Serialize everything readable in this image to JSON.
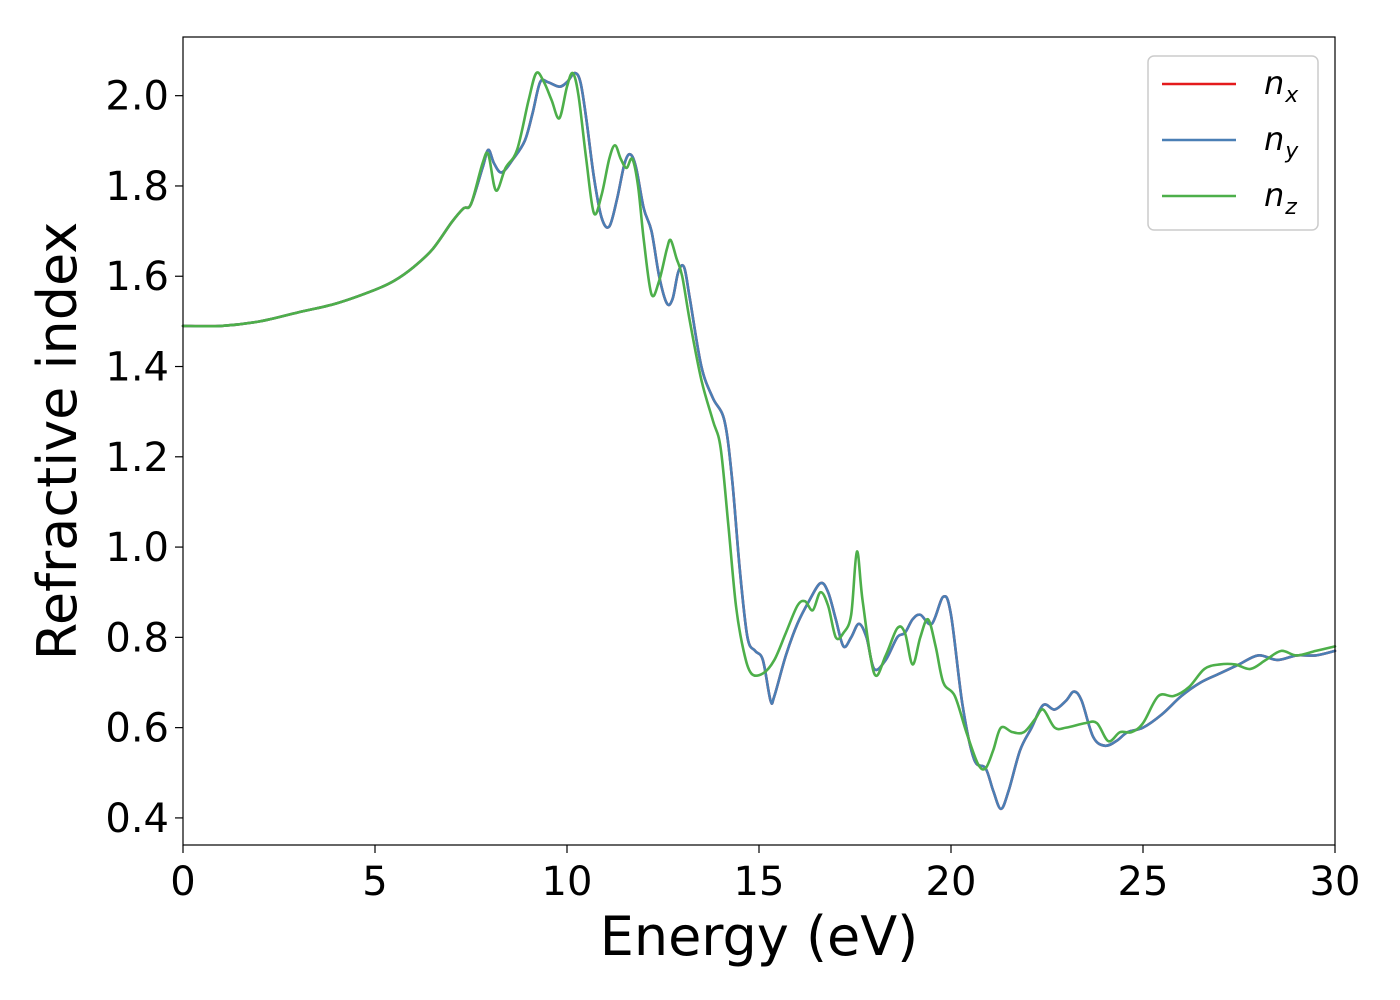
{
  "chart_data": {
    "type": "line",
    "title": "",
    "xlabel": "Energy (eV)",
    "ylabel": "Refractive index",
    "xlim": [
      0,
      30
    ],
    "ylim": [
      0.34,
      2.13
    ],
    "x_ticks": [
      0,
      5,
      10,
      15,
      20,
      25,
      30
    ],
    "y_ticks": [
      0.4,
      0.6,
      0.8,
      1.0,
      1.2,
      1.4,
      1.6,
      1.8,
      2.0
    ],
    "grid": false,
    "legend_position": "top-right",
    "series": [
      {
        "name": "n",
        "subscript": "x",
        "color": "#e41a1c",
        "points": [
          [
            0,
            1.49
          ],
          [
            1,
            1.49
          ],
          [
            2,
            1.5
          ],
          [
            3,
            1.52
          ],
          [
            4,
            1.54
          ],
          [
            5,
            1.57
          ],
          [
            5.5,
            1.59
          ],
          [
            6,
            1.62
          ],
          [
            6.5,
            1.66
          ],
          [
            7,
            1.72
          ],
          [
            7.3,
            1.75
          ],
          [
            7.5,
            1.76
          ],
          [
            7.8,
            1.84
          ],
          [
            7.95,
            1.88
          ],
          [
            8.1,
            1.85
          ],
          [
            8.3,
            1.83
          ],
          [
            8.6,
            1.86
          ],
          [
            8.9,
            1.9
          ],
          [
            9.1,
            1.96
          ],
          [
            9.3,
            2.03
          ],
          [
            9.5,
            2.03
          ],
          [
            9.8,
            2.02
          ],
          [
            10.0,
            2.03
          ],
          [
            10.2,
            2.05
          ],
          [
            10.35,
            2.03
          ],
          [
            10.5,
            1.95
          ],
          [
            10.7,
            1.82
          ],
          [
            10.9,
            1.73
          ],
          [
            11.1,
            1.71
          ],
          [
            11.3,
            1.77
          ],
          [
            11.5,
            1.85
          ],
          [
            11.65,
            1.87
          ],
          [
            11.8,
            1.84
          ],
          [
            12.0,
            1.75
          ],
          [
            12.2,
            1.7
          ],
          [
            12.4,
            1.6
          ],
          [
            12.6,
            1.54
          ],
          [
            12.75,
            1.55
          ],
          [
            12.9,
            1.61
          ],
          [
            13.05,
            1.62
          ],
          [
            13.2,
            1.55
          ],
          [
            13.5,
            1.4
          ],
          [
            13.8,
            1.33
          ],
          [
            14.1,
            1.28
          ],
          [
            14.3,
            1.15
          ],
          [
            14.5,
            0.95
          ],
          [
            14.7,
            0.8
          ],
          [
            14.9,
            0.77
          ],
          [
            15.1,
            0.75
          ],
          [
            15.3,
            0.66
          ],
          [
            15.4,
            0.67
          ],
          [
            15.7,
            0.76
          ],
          [
            16.0,
            0.83
          ],
          [
            16.3,
            0.88
          ],
          [
            16.6,
            0.92
          ],
          [
            16.8,
            0.9
          ],
          [
            17.0,
            0.84
          ],
          [
            17.2,
            0.78
          ],
          [
            17.4,
            0.8
          ],
          [
            17.6,
            0.83
          ],
          [
            17.8,
            0.8
          ],
          [
            18.0,
            0.73
          ],
          [
            18.3,
            0.75
          ],
          [
            18.6,
            0.8
          ],
          [
            18.8,
            0.81
          ],
          [
            19.0,
            0.84
          ],
          [
            19.2,
            0.85
          ],
          [
            19.5,
            0.83
          ],
          [
            19.8,
            0.89
          ],
          [
            20.0,
            0.85
          ],
          [
            20.3,
            0.65
          ],
          [
            20.6,
            0.53
          ],
          [
            20.9,
            0.51
          ],
          [
            21.1,
            0.46
          ],
          [
            21.3,
            0.42
          ],
          [
            21.5,
            0.46
          ],
          [
            21.8,
            0.55
          ],
          [
            22.1,
            0.6
          ],
          [
            22.4,
            0.65
          ],
          [
            22.7,
            0.64
          ],
          [
            23.0,
            0.66
          ],
          [
            23.2,
            0.68
          ],
          [
            23.4,
            0.66
          ],
          [
            23.7,
            0.58
          ],
          [
            24.0,
            0.56
          ],
          [
            24.3,
            0.57
          ],
          [
            24.6,
            0.59
          ],
          [
            25.0,
            0.6
          ],
          [
            25.5,
            0.63
          ],
          [
            26.0,
            0.67
          ],
          [
            26.5,
            0.7
          ],
          [
            27.0,
            0.72
          ],
          [
            27.5,
            0.74
          ],
          [
            28.0,
            0.76
          ],
          [
            28.5,
            0.75
          ],
          [
            29.0,
            0.76
          ],
          [
            29.5,
            0.76
          ],
          [
            30.0,
            0.77
          ]
        ]
      },
      {
        "name": "n",
        "subscript": "y",
        "color": "#4a7fb5",
        "points": [
          [
            0,
            1.49
          ],
          [
            1,
            1.49
          ],
          [
            2,
            1.5
          ],
          [
            3,
            1.52
          ],
          [
            4,
            1.54
          ],
          [
            5,
            1.57
          ],
          [
            5.5,
            1.59
          ],
          [
            6,
            1.62
          ],
          [
            6.5,
            1.66
          ],
          [
            7,
            1.72
          ],
          [
            7.3,
            1.75
          ],
          [
            7.5,
            1.76
          ],
          [
            7.8,
            1.84
          ],
          [
            7.95,
            1.88
          ],
          [
            8.1,
            1.85
          ],
          [
            8.3,
            1.83
          ],
          [
            8.6,
            1.86
          ],
          [
            8.9,
            1.9
          ],
          [
            9.1,
            1.96
          ],
          [
            9.3,
            2.03
          ],
          [
            9.5,
            2.03
          ],
          [
            9.8,
            2.02
          ],
          [
            10.0,
            2.03
          ],
          [
            10.2,
            2.05
          ],
          [
            10.35,
            2.03
          ],
          [
            10.5,
            1.95
          ],
          [
            10.7,
            1.82
          ],
          [
            10.9,
            1.73
          ],
          [
            11.1,
            1.71
          ],
          [
            11.3,
            1.77
          ],
          [
            11.5,
            1.85
          ],
          [
            11.65,
            1.87
          ],
          [
            11.8,
            1.84
          ],
          [
            12.0,
            1.75
          ],
          [
            12.2,
            1.7
          ],
          [
            12.4,
            1.6
          ],
          [
            12.6,
            1.54
          ],
          [
            12.75,
            1.55
          ],
          [
            12.9,
            1.61
          ],
          [
            13.05,
            1.62
          ],
          [
            13.2,
            1.55
          ],
          [
            13.5,
            1.4
          ],
          [
            13.8,
            1.33
          ],
          [
            14.1,
            1.28
          ],
          [
            14.3,
            1.15
          ],
          [
            14.5,
            0.95
          ],
          [
            14.7,
            0.8
          ],
          [
            14.9,
            0.77
          ],
          [
            15.1,
            0.75
          ],
          [
            15.3,
            0.66
          ],
          [
            15.4,
            0.67
          ],
          [
            15.7,
            0.76
          ],
          [
            16.0,
            0.83
          ],
          [
            16.3,
            0.88
          ],
          [
            16.6,
            0.92
          ],
          [
            16.8,
            0.9
          ],
          [
            17.0,
            0.84
          ],
          [
            17.2,
            0.78
          ],
          [
            17.4,
            0.8
          ],
          [
            17.6,
            0.83
          ],
          [
            17.8,
            0.8
          ],
          [
            18.0,
            0.73
          ],
          [
            18.3,
            0.75
          ],
          [
            18.6,
            0.8
          ],
          [
            18.8,
            0.81
          ],
          [
            19.0,
            0.84
          ],
          [
            19.2,
            0.85
          ],
          [
            19.5,
            0.83
          ],
          [
            19.8,
            0.89
          ],
          [
            20.0,
            0.85
          ],
          [
            20.3,
            0.65
          ],
          [
            20.6,
            0.53
          ],
          [
            20.9,
            0.51
          ],
          [
            21.1,
            0.46
          ],
          [
            21.3,
            0.42
          ],
          [
            21.5,
            0.46
          ],
          [
            21.8,
            0.55
          ],
          [
            22.1,
            0.6
          ],
          [
            22.4,
            0.65
          ],
          [
            22.7,
            0.64
          ],
          [
            23.0,
            0.66
          ],
          [
            23.2,
            0.68
          ],
          [
            23.4,
            0.66
          ],
          [
            23.7,
            0.58
          ],
          [
            24.0,
            0.56
          ],
          [
            24.3,
            0.57
          ],
          [
            24.6,
            0.59
          ],
          [
            25.0,
            0.6
          ],
          [
            25.5,
            0.63
          ],
          [
            26.0,
            0.67
          ],
          [
            26.5,
            0.7
          ],
          [
            27.0,
            0.72
          ],
          [
            27.5,
            0.74
          ],
          [
            28.0,
            0.76
          ],
          [
            28.5,
            0.75
          ],
          [
            29.0,
            0.76
          ],
          [
            29.5,
            0.76
          ],
          [
            30.0,
            0.77
          ]
        ]
      },
      {
        "name": "n",
        "subscript": "z",
        "color": "#4daf4a",
        "points": [
          [
            0,
            1.49
          ],
          [
            1,
            1.49
          ],
          [
            2,
            1.5
          ],
          [
            3,
            1.52
          ],
          [
            4,
            1.54
          ],
          [
            5,
            1.57
          ],
          [
            5.5,
            1.59
          ],
          [
            6,
            1.62
          ],
          [
            6.5,
            1.66
          ],
          [
            7,
            1.72
          ],
          [
            7.3,
            1.75
          ],
          [
            7.5,
            1.76
          ],
          [
            7.8,
            1.85
          ],
          [
            7.95,
            1.87
          ],
          [
            8.15,
            1.79
          ],
          [
            8.4,
            1.84
          ],
          [
            8.7,
            1.88
          ],
          [
            9.0,
            1.99
          ],
          [
            9.2,
            2.05
          ],
          [
            9.4,
            2.03
          ],
          [
            9.6,
            1.99
          ],
          [
            9.8,
            1.95
          ],
          [
            10.0,
            2.02
          ],
          [
            10.15,
            2.05
          ],
          [
            10.3,
            2.0
          ],
          [
            10.5,
            1.86
          ],
          [
            10.7,
            1.74
          ],
          [
            10.9,
            1.78
          ],
          [
            11.1,
            1.86
          ],
          [
            11.25,
            1.89
          ],
          [
            11.4,
            1.86
          ],
          [
            11.55,
            1.84
          ],
          [
            11.7,
            1.86
          ],
          [
            11.85,
            1.8
          ],
          [
            12.0,
            1.68
          ],
          [
            12.2,
            1.56
          ],
          [
            12.4,
            1.59
          ],
          [
            12.6,
            1.66
          ],
          [
            12.7,
            1.68
          ],
          [
            12.85,
            1.64
          ],
          [
            13.0,
            1.6
          ],
          [
            13.2,
            1.5
          ],
          [
            13.5,
            1.37
          ],
          [
            13.8,
            1.28
          ],
          [
            14.0,
            1.22
          ],
          [
            14.2,
            1.05
          ],
          [
            14.4,
            0.87
          ],
          [
            14.6,
            0.77
          ],
          [
            14.8,
            0.72
          ],
          [
            15.1,
            0.72
          ],
          [
            15.4,
            0.75
          ],
          [
            15.7,
            0.81
          ],
          [
            16.0,
            0.87
          ],
          [
            16.2,
            0.88
          ],
          [
            16.4,
            0.86
          ],
          [
            16.6,
            0.9
          ],
          [
            16.8,
            0.87
          ],
          [
            17.0,
            0.8
          ],
          [
            17.2,
            0.81
          ],
          [
            17.4,
            0.85
          ],
          [
            17.55,
            0.99
          ],
          [
            17.7,
            0.88
          ],
          [
            18.0,
            0.72
          ],
          [
            18.3,
            0.76
          ],
          [
            18.6,
            0.82
          ],
          [
            18.8,
            0.81
          ],
          [
            19.0,
            0.74
          ],
          [
            19.2,
            0.8
          ],
          [
            19.4,
            0.84
          ],
          [
            19.6,
            0.78
          ],
          [
            19.8,
            0.7
          ],
          [
            20.1,
            0.67
          ],
          [
            20.4,
            0.59
          ],
          [
            20.7,
            0.52
          ],
          [
            20.9,
            0.51
          ],
          [
            21.1,
            0.55
          ],
          [
            21.3,
            0.6
          ],
          [
            21.6,
            0.59
          ],
          [
            21.9,
            0.59
          ],
          [
            22.2,
            0.62
          ],
          [
            22.4,
            0.64
          ],
          [
            22.7,
            0.6
          ],
          [
            23.0,
            0.6
          ],
          [
            23.5,
            0.61
          ],
          [
            23.8,
            0.61
          ],
          [
            24.1,
            0.57
          ],
          [
            24.4,
            0.59
          ],
          [
            24.7,
            0.59
          ],
          [
            25.0,
            0.61
          ],
          [
            25.4,
            0.67
          ],
          [
            25.8,
            0.67
          ],
          [
            26.2,
            0.69
          ],
          [
            26.6,
            0.73
          ],
          [
            27.0,
            0.74
          ],
          [
            27.4,
            0.74
          ],
          [
            27.8,
            0.73
          ],
          [
            28.2,
            0.75
          ],
          [
            28.6,
            0.77
          ],
          [
            29.0,
            0.76
          ],
          [
            29.5,
            0.77
          ],
          [
            30.0,
            0.78
          ]
        ]
      }
    ]
  }
}
